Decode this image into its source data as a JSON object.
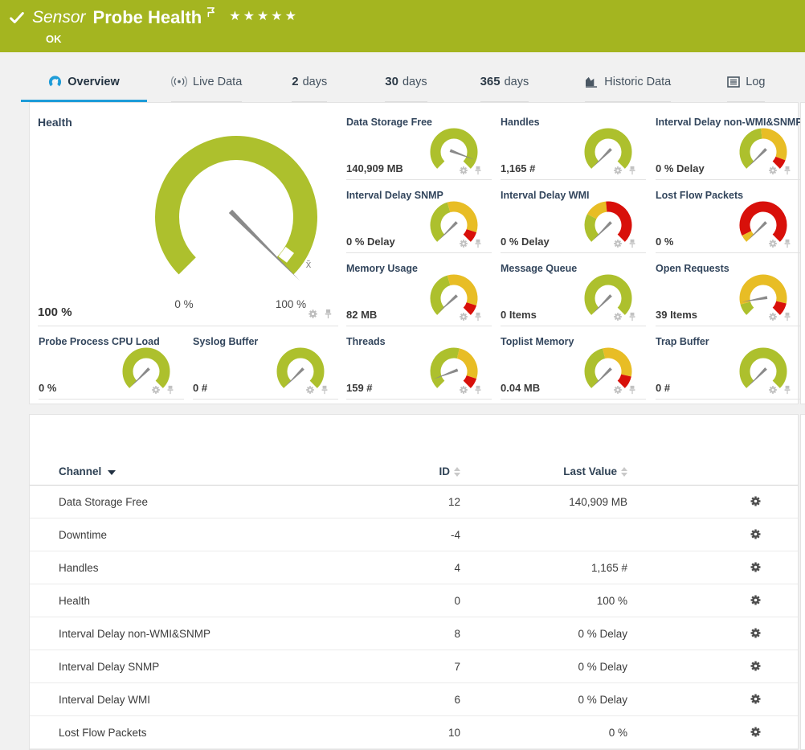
{
  "header": {
    "type_label": "Sensor",
    "title": "Probe Health",
    "status": "OK",
    "stars": "★★★★★",
    "priority_flag": "flag-icon"
  },
  "tabs": [
    {
      "id": "overview",
      "label": "Overview",
      "icon": "gauge-icon",
      "active": true
    },
    {
      "id": "live-data",
      "label": "Live Data",
      "icon": "live-icon"
    },
    {
      "id": "2-days",
      "strong": "2",
      "label": "days"
    },
    {
      "id": "30-days",
      "strong": "30",
      "label": "days"
    },
    {
      "id": "365-days",
      "strong": "365",
      "label": "days"
    },
    {
      "id": "historic-data",
      "label": "Historic Data",
      "icon": "chart-icon"
    },
    {
      "id": "log",
      "label": "Log",
      "icon": "log-icon"
    }
  ],
  "colors": {
    "ok_green": "#a4b520",
    "gauge_green": "#adc02d",
    "gauge_yellow": "#e8bd25",
    "gauge_red": "#d8100a",
    "accent_blue": "#1e9cd8",
    "needle_gray": "#8a8a8a"
  },
  "health_gauge": {
    "title": "Health",
    "value": "100 %",
    "min_label": "0 %",
    "max_label": "100 %",
    "value_pct": 100,
    "mean_marker": "x̄"
  },
  "mini_gauges": [
    {
      "title": "Data Storage Free",
      "value": "140,909 MB",
      "needle_pct": 91,
      "segments": [
        [
          "green",
          0,
          100
        ]
      ]
    },
    {
      "title": "Handles",
      "value": "1,165 #",
      "needle_pct": 0,
      "segments": [
        [
          "green",
          0,
          100
        ]
      ]
    },
    {
      "title": "Interval Delay non-WMI&SNMP",
      "value": "0 % Delay",
      "needle_pct": 0,
      "segments": [
        [
          "green",
          0,
          48
        ],
        [
          "yellow",
          48,
          91
        ],
        [
          "red",
          91,
          100
        ]
      ]
    },
    {
      "title": "Interval Delay SNMP",
      "value": "0 % Delay",
      "needle_pct": 0,
      "segments": [
        [
          "green",
          0,
          44
        ],
        [
          "yellow",
          44,
          90
        ],
        [
          "red",
          90,
          100
        ]
      ]
    },
    {
      "title": "Interval Delay WMI",
      "value": "0 % Delay",
      "needle_pct": 0,
      "segments": [
        [
          "green",
          0,
          27
        ],
        [
          "yellow",
          27,
          48
        ],
        [
          "red",
          48,
          100
        ]
      ]
    },
    {
      "title": "Lost Flow Packets",
      "value": "0 %",
      "needle_pct": 0,
      "segments": [
        [
          "yellow",
          0,
          7
        ],
        [
          "red",
          7,
          100
        ]
      ]
    },
    {
      "title": "Memory Usage",
      "value": "82 MB",
      "needle_pct": 1,
      "segments": [
        [
          "green",
          0,
          44
        ],
        [
          "yellow",
          44,
          90
        ],
        [
          "red",
          90,
          100
        ]
      ]
    },
    {
      "title": "Message Queue",
      "value": "0 Items",
      "needle_pct": 0,
      "segments": [
        [
          "green",
          0,
          100
        ]
      ]
    },
    {
      "title": "Open Requests",
      "value": "39 Items",
      "needle_pct": 13,
      "segments": [
        [
          "green",
          0,
          11
        ],
        [
          "yellow",
          11,
          88
        ],
        [
          "red",
          88,
          100
        ]
      ]
    },
    {
      "title": "Probe Process CPU Load",
      "value": "0 %",
      "needle_pct": 0,
      "segments": [
        [
          "green",
          0,
          100
        ]
      ]
    },
    {
      "title": "Syslog Buffer",
      "value": "0 #",
      "needle_pct": 0,
      "segments": [
        [
          "green",
          0,
          100
        ]
      ]
    },
    {
      "title": "Threads",
      "value": "159 #",
      "needle_pct": 9,
      "segments": [
        [
          "green",
          0,
          55
        ],
        [
          "yellow",
          55,
          90
        ],
        [
          "red",
          90,
          100
        ]
      ]
    },
    {
      "title": "Toplist Memory",
      "value": "0.04 MB",
      "needle_pct": 0,
      "segments": [
        [
          "green",
          0,
          45
        ],
        [
          "yellow",
          45,
          88
        ],
        [
          "red",
          88,
          100
        ]
      ]
    },
    {
      "title": "Trap Buffer",
      "value": "0 #",
      "needle_pct": 0,
      "segments": [
        [
          "green",
          0,
          100
        ]
      ]
    }
  ],
  "table": {
    "columns": [
      {
        "label": "Channel"
      },
      {
        "label": "ID"
      },
      {
        "label": "Last Value"
      }
    ],
    "rows": [
      {
        "channel": "Data Storage Free",
        "id": "12",
        "last_value": "140,909 MB"
      },
      {
        "channel": "Downtime",
        "id": "-4",
        "last_value": ""
      },
      {
        "channel": "Handles",
        "id": "4",
        "last_value": "1,165 #"
      },
      {
        "channel": "Health",
        "id": "0",
        "last_value": "100 %"
      },
      {
        "channel": "Interval Delay non-WMI&SNMP",
        "id": "8",
        "last_value": "0 % Delay"
      },
      {
        "channel": "Interval Delay SNMP",
        "id": "7",
        "last_value": "0 % Delay"
      },
      {
        "channel": "Interval Delay WMI",
        "id": "6",
        "last_value": "0 % Delay"
      },
      {
        "channel": "Lost Flow Packets",
        "id": "10",
        "last_value": "0 %"
      }
    ]
  }
}
